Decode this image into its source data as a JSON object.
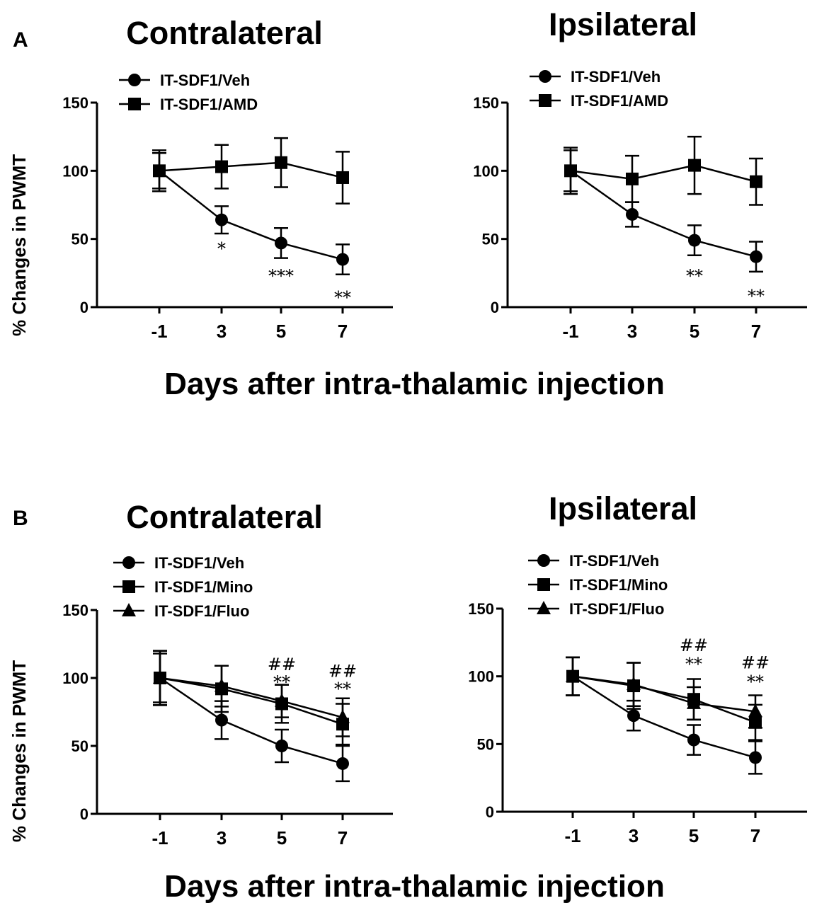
{
  "panels": {
    "a": {
      "letter": "A"
    },
    "b": {
      "letter": "B"
    }
  },
  "figure": {
    "ylabel": "% Changes in PWMT",
    "xlabel": "Days after intra-thalamic injection"
  },
  "chart_data": [
    {
      "id": "A-contra",
      "type": "line",
      "title": "Contralateral",
      "xlabel": "Days after intra-thalamic injection",
      "ylabel": "% Changes in PWMT",
      "categories": [
        "-1",
        "3",
        "5",
        "7"
      ],
      "ylim": [
        0,
        150
      ],
      "yticks": [
        "0",
        "50",
        "100",
        "150"
      ],
      "series": [
        {
          "name": "IT-SDF1/Veh",
          "marker": "circle",
          "values": [
            100,
            64,
            47,
            35
          ],
          "errors": [
            13,
            10,
            11,
            11
          ]
        },
        {
          "name": "IT-SDF1/AMD",
          "marker": "square",
          "values": [
            100,
            103,
            106,
            95
          ],
          "errors": [
            15,
            16,
            18,
            19
          ]
        }
      ],
      "annotations": [
        {
          "category": "3",
          "y": 45,
          "text": "*"
        },
        {
          "category": "5",
          "y": 25,
          "text": "***"
        },
        {
          "category": "7",
          "y": 9,
          "text": "**"
        }
      ]
    },
    {
      "id": "A-ipsi",
      "type": "line",
      "title": "Ipsilateral",
      "xlabel": "Days after intra-thalamic injection",
      "ylabel": "% Changes in PWMT",
      "categories": [
        "-1",
        "3",
        "5",
        "7"
      ],
      "ylim": [
        0,
        150
      ],
      "yticks": [
        "0",
        "50",
        "100",
        "150"
      ],
      "series": [
        {
          "name": "IT-SDF1/Veh",
          "marker": "circle",
          "values": [
            100,
            68,
            49,
            37
          ],
          "errors": [
            15,
            9,
            11,
            11
          ]
        },
        {
          "name": "IT-SDF1/AMD",
          "marker": "square",
          "values": [
            100,
            94,
            104,
            92
          ],
          "errors": [
            17,
            17,
            21,
            17
          ]
        }
      ],
      "annotations": [
        {
          "category": "5",
          "y": 25,
          "text": "**"
        },
        {
          "category": "7",
          "y": 10,
          "text": "**"
        }
      ]
    },
    {
      "id": "B-contra",
      "type": "line",
      "title": "Contralateral",
      "xlabel": "Days after intra-thalamic injection",
      "ylabel": "% Changes in PWMT",
      "categories": [
        "-1",
        "3",
        "5",
        "7"
      ],
      "ylim": [
        0,
        150
      ],
      "yticks": [
        "0",
        "50",
        "100",
        "150"
      ],
      "series": [
        {
          "name": "IT-SDF1/Veh",
          "marker": "circle",
          "values": [
            100,
            69,
            50,
            37
          ],
          "errors": [
            20,
            14,
            12,
            13
          ]
        },
        {
          "name": "IT-SDF1/Mino",
          "marker": "square",
          "values": [
            100,
            92,
            81,
            66
          ],
          "errors": [
            20,
            17,
            14,
            15
          ]
        },
        {
          "name": "IT-SDF1/Fluo",
          "marker": "triangle",
          "values": [
            100,
            94,
            83,
            71
          ],
          "errors": [
            18,
            15,
            12,
            14
          ]
        }
      ],
      "annotations": [
        {
          "category": "5",
          "y": 112,
          "text": "##"
        },
        {
          "category": "5",
          "y": 99,
          "text": "**"
        },
        {
          "category": "7",
          "y": 107,
          "text": "##"
        },
        {
          "category": "7",
          "y": 94,
          "text": "**"
        }
      ]
    },
    {
      "id": "B-ipsi",
      "type": "line",
      "title": "Ipsilateral",
      "xlabel": "Days after intra-thalamic injection",
      "ylabel": "% Changes in PWMT",
      "categories": [
        "-1",
        "3",
        "5",
        "7"
      ],
      "ylim": [
        0,
        150
      ],
      "yticks": [
        "0",
        "50",
        "100",
        "150"
      ],
      "series": [
        {
          "name": "IT-SDF1/Veh",
          "marker": "circle",
          "values": [
            100,
            71,
            53,
            40
          ],
          "errors": [
            14,
            11,
            11,
            12
          ]
        },
        {
          "name": "IT-SDF1/Mino",
          "marker": "square",
          "values": [
            100,
            93,
            83,
            66
          ],
          "errors": [
            14,
            17,
            15,
            13
          ]
        },
        {
          "name": "IT-SDF1/Fluo",
          "marker": "triangle",
          "values": [
            100,
            94,
            80,
            74
          ],
          "errors": [
            14,
            16,
            12,
            12
          ]
        }
      ],
      "annotations": [
        {
          "category": "5",
          "y": 125,
          "text": "##"
        },
        {
          "category": "5",
          "y": 111,
          "text": "**"
        },
        {
          "category": "7",
          "y": 112,
          "text": "##"
        },
        {
          "category": "7",
          "y": 98,
          "text": "**"
        }
      ]
    }
  ]
}
